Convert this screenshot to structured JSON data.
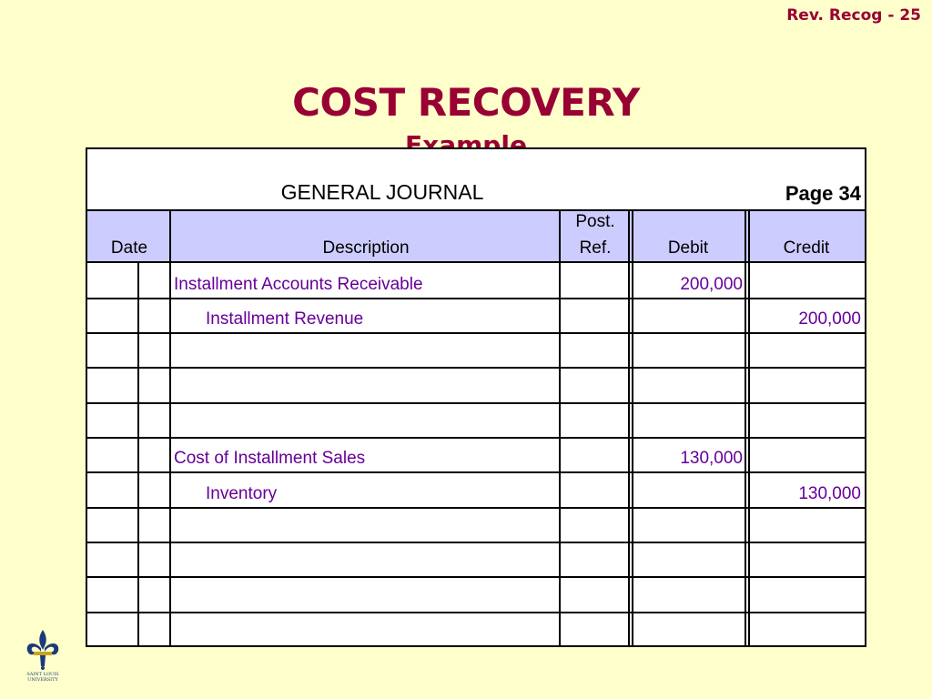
{
  "slide": {
    "number_label": "Rev. Recog -  25",
    "title": "COST RECOVERY",
    "subtitle": "Example"
  },
  "journal": {
    "title": "GENERAL JOURNAL",
    "page": "Page 34",
    "headers": {
      "date": "Date",
      "description": "Description",
      "post_ref_line1": "Post.",
      "post_ref_line2": "Ref.",
      "debit": "Debit",
      "credit": "Credit"
    },
    "rows": [
      {
        "description": "Installment Accounts Receivable",
        "indent": false,
        "debit": "200,000",
        "credit": ""
      },
      {
        "description": "Installment Revenue",
        "indent": true,
        "debit": "",
        "credit": "200,000"
      },
      {
        "description": "",
        "indent": false,
        "debit": "",
        "credit": ""
      },
      {
        "description": "",
        "indent": false,
        "debit": "",
        "credit": ""
      },
      {
        "description": "",
        "indent": false,
        "debit": "",
        "credit": ""
      },
      {
        "description": "Cost of Installment Sales",
        "indent": false,
        "debit": "130,000",
        "credit": ""
      },
      {
        "description": "Inventory",
        "indent": true,
        "debit": "",
        "credit": "130,000"
      },
      {
        "description": "",
        "indent": false,
        "debit": "",
        "credit": ""
      },
      {
        "description": "",
        "indent": false,
        "debit": "",
        "credit": ""
      },
      {
        "description": "",
        "indent": false,
        "debit": "",
        "credit": ""
      },
      {
        "description": "",
        "indent": false,
        "debit": "",
        "credit": ""
      }
    ]
  },
  "logo": {
    "icon": "fleur-de-lis-icon",
    "text_line1": "SAINT LOUIS",
    "text_line2": "UNIVERSITY"
  },
  "colors": {
    "background": "#ffffcc",
    "title": "#990033",
    "header_band": "#ccccff",
    "entry_text": "#660099"
  }
}
